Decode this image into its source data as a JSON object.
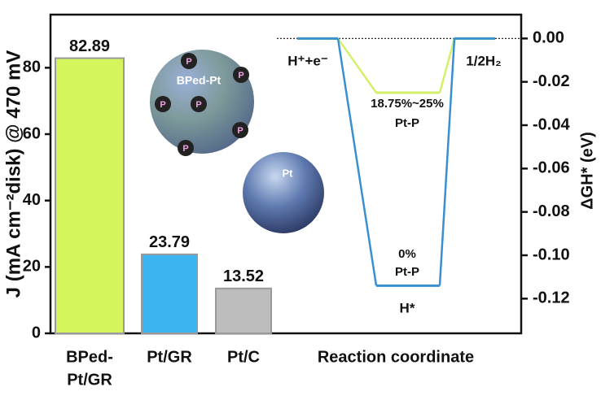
{
  "chart_data": [
    {
      "type": "bar",
      "y_label": "J (mA cm⁻²disk) @ 470 mV",
      "categories": [
        [
          "BPed-",
          "Pt/GR"
        ],
        [
          "Pt/GR"
        ],
        [
          "Pt/C"
        ]
      ],
      "values": [
        82.89,
        23.79,
        13.52
      ],
      "value_labels": [
        "82.89",
        "23.79",
        "13.52"
      ],
      "colors": [
        "#d4f55c",
        "#3db4ef",
        "#bdbdbd"
      ],
      "ylim": [
        0,
        96
      ],
      "yticks": [
        0,
        20,
        40,
        60,
        80
      ],
      "annotations": {
        "composite": "BPed-Pt",
        "metal": "Pt",
        "dopant": "P"
      }
    },
    {
      "type": "energy",
      "x_label": "Reaction coordinate",
      "y2_label": "ΔGH* (eV)",
      "states": [
        "H⁺+e⁻",
        "H*",
        "1/2H₂"
      ],
      "series": [
        {
          "name": [
            "18.75%~25%",
            "Pt-P"
          ],
          "color": "#d2f06a",
          "values": [
            0,
            -0.025,
            0
          ]
        },
        {
          "name": [
            "0%",
            "Pt-P"
          ],
          "color": "#3a8fd0",
          "values": [
            0,
            -0.114,
            0
          ]
        }
      ],
      "y2lim": [
        -0.136,
        0.011
      ],
      "y2ticks": [
        {
          "value": 0,
          "label": "0.00"
        },
        {
          "value": -0.02,
          "label": "-0.02"
        },
        {
          "value": -0.04,
          "label": "-0.04"
        },
        {
          "value": -0.06,
          "label": "-0.06"
        },
        {
          "value": -0.08,
          "label": "-0.08"
        },
        {
          "value": -0.1,
          "label": "-0.10"
        },
        {
          "value": -0.12,
          "label": "-0.12"
        }
      ]
    }
  ]
}
